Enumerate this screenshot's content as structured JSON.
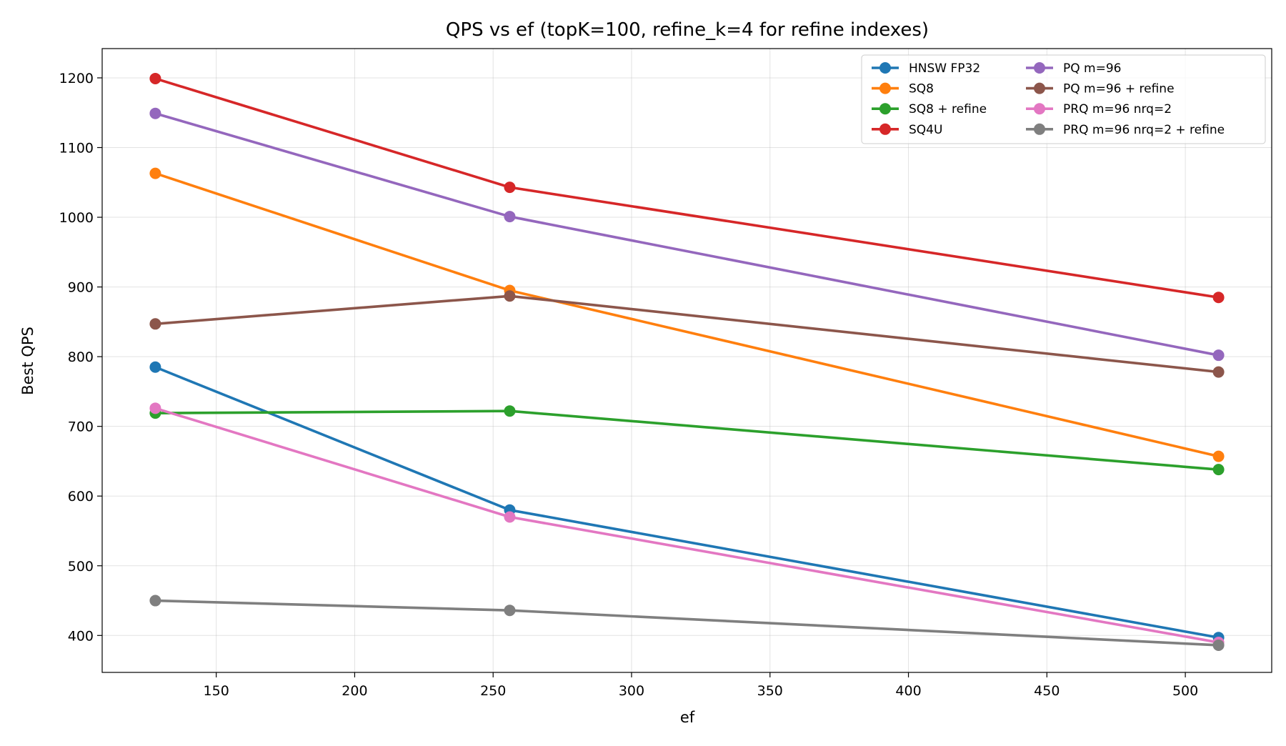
{
  "chart_data": {
    "type": "line",
    "title": "QPS vs ef (topK=100, refine_k=4 for refine indexes)",
    "xlabel": "ef",
    "ylabel": "Best QPS",
    "x": [
      128,
      256,
      512
    ],
    "xlim": [
      108.8,
      531.2
    ],
    "ylim": [
      347,
      1242
    ],
    "xticks": [
      150,
      200,
      250,
      300,
      350,
      400,
      450,
      500
    ],
    "yticks": [
      400,
      500,
      600,
      700,
      800,
      900,
      1000,
      1100,
      1200
    ],
    "xtick_labels": [
      "150",
      "200",
      "250",
      "300",
      "350",
      "400",
      "450",
      "500"
    ],
    "ytick_labels": [
      "400",
      "500",
      "600",
      "700",
      "800",
      "900",
      "1000",
      "1100",
      "1200"
    ],
    "grid": true,
    "legend_position": "top-right",
    "legend_columns": 2,
    "series": [
      {
        "name": "HNSW FP32",
        "color": "#1f77b4",
        "values": [
          785,
          580,
          397
        ]
      },
      {
        "name": "SQ8",
        "color": "#ff7f0e",
        "values": [
          1063,
          895,
          657
        ]
      },
      {
        "name": "SQ8 + refine",
        "color": "#2ca02c",
        "values": [
          719,
          722,
          638
        ]
      },
      {
        "name": "SQ4U",
        "color": "#d62728",
        "values": [
          1199,
          1043,
          885
        ]
      },
      {
        "name": "PQ m=96",
        "color": "#9467bd",
        "values": [
          1149,
          1001,
          802
        ]
      },
      {
        "name": "PQ m=96 + refine",
        "color": "#8c564b",
        "values": [
          847,
          887,
          778
        ]
      },
      {
        "name": "PRQ m=96 nrq=2",
        "color": "#e377c2",
        "values": [
          726,
          570,
          390
        ]
      },
      {
        "name": "PRQ m=96 nrq=2 + refine",
        "color": "#7f7f7f",
        "values": [
          450,
          436,
          386
        ]
      }
    ]
  }
}
